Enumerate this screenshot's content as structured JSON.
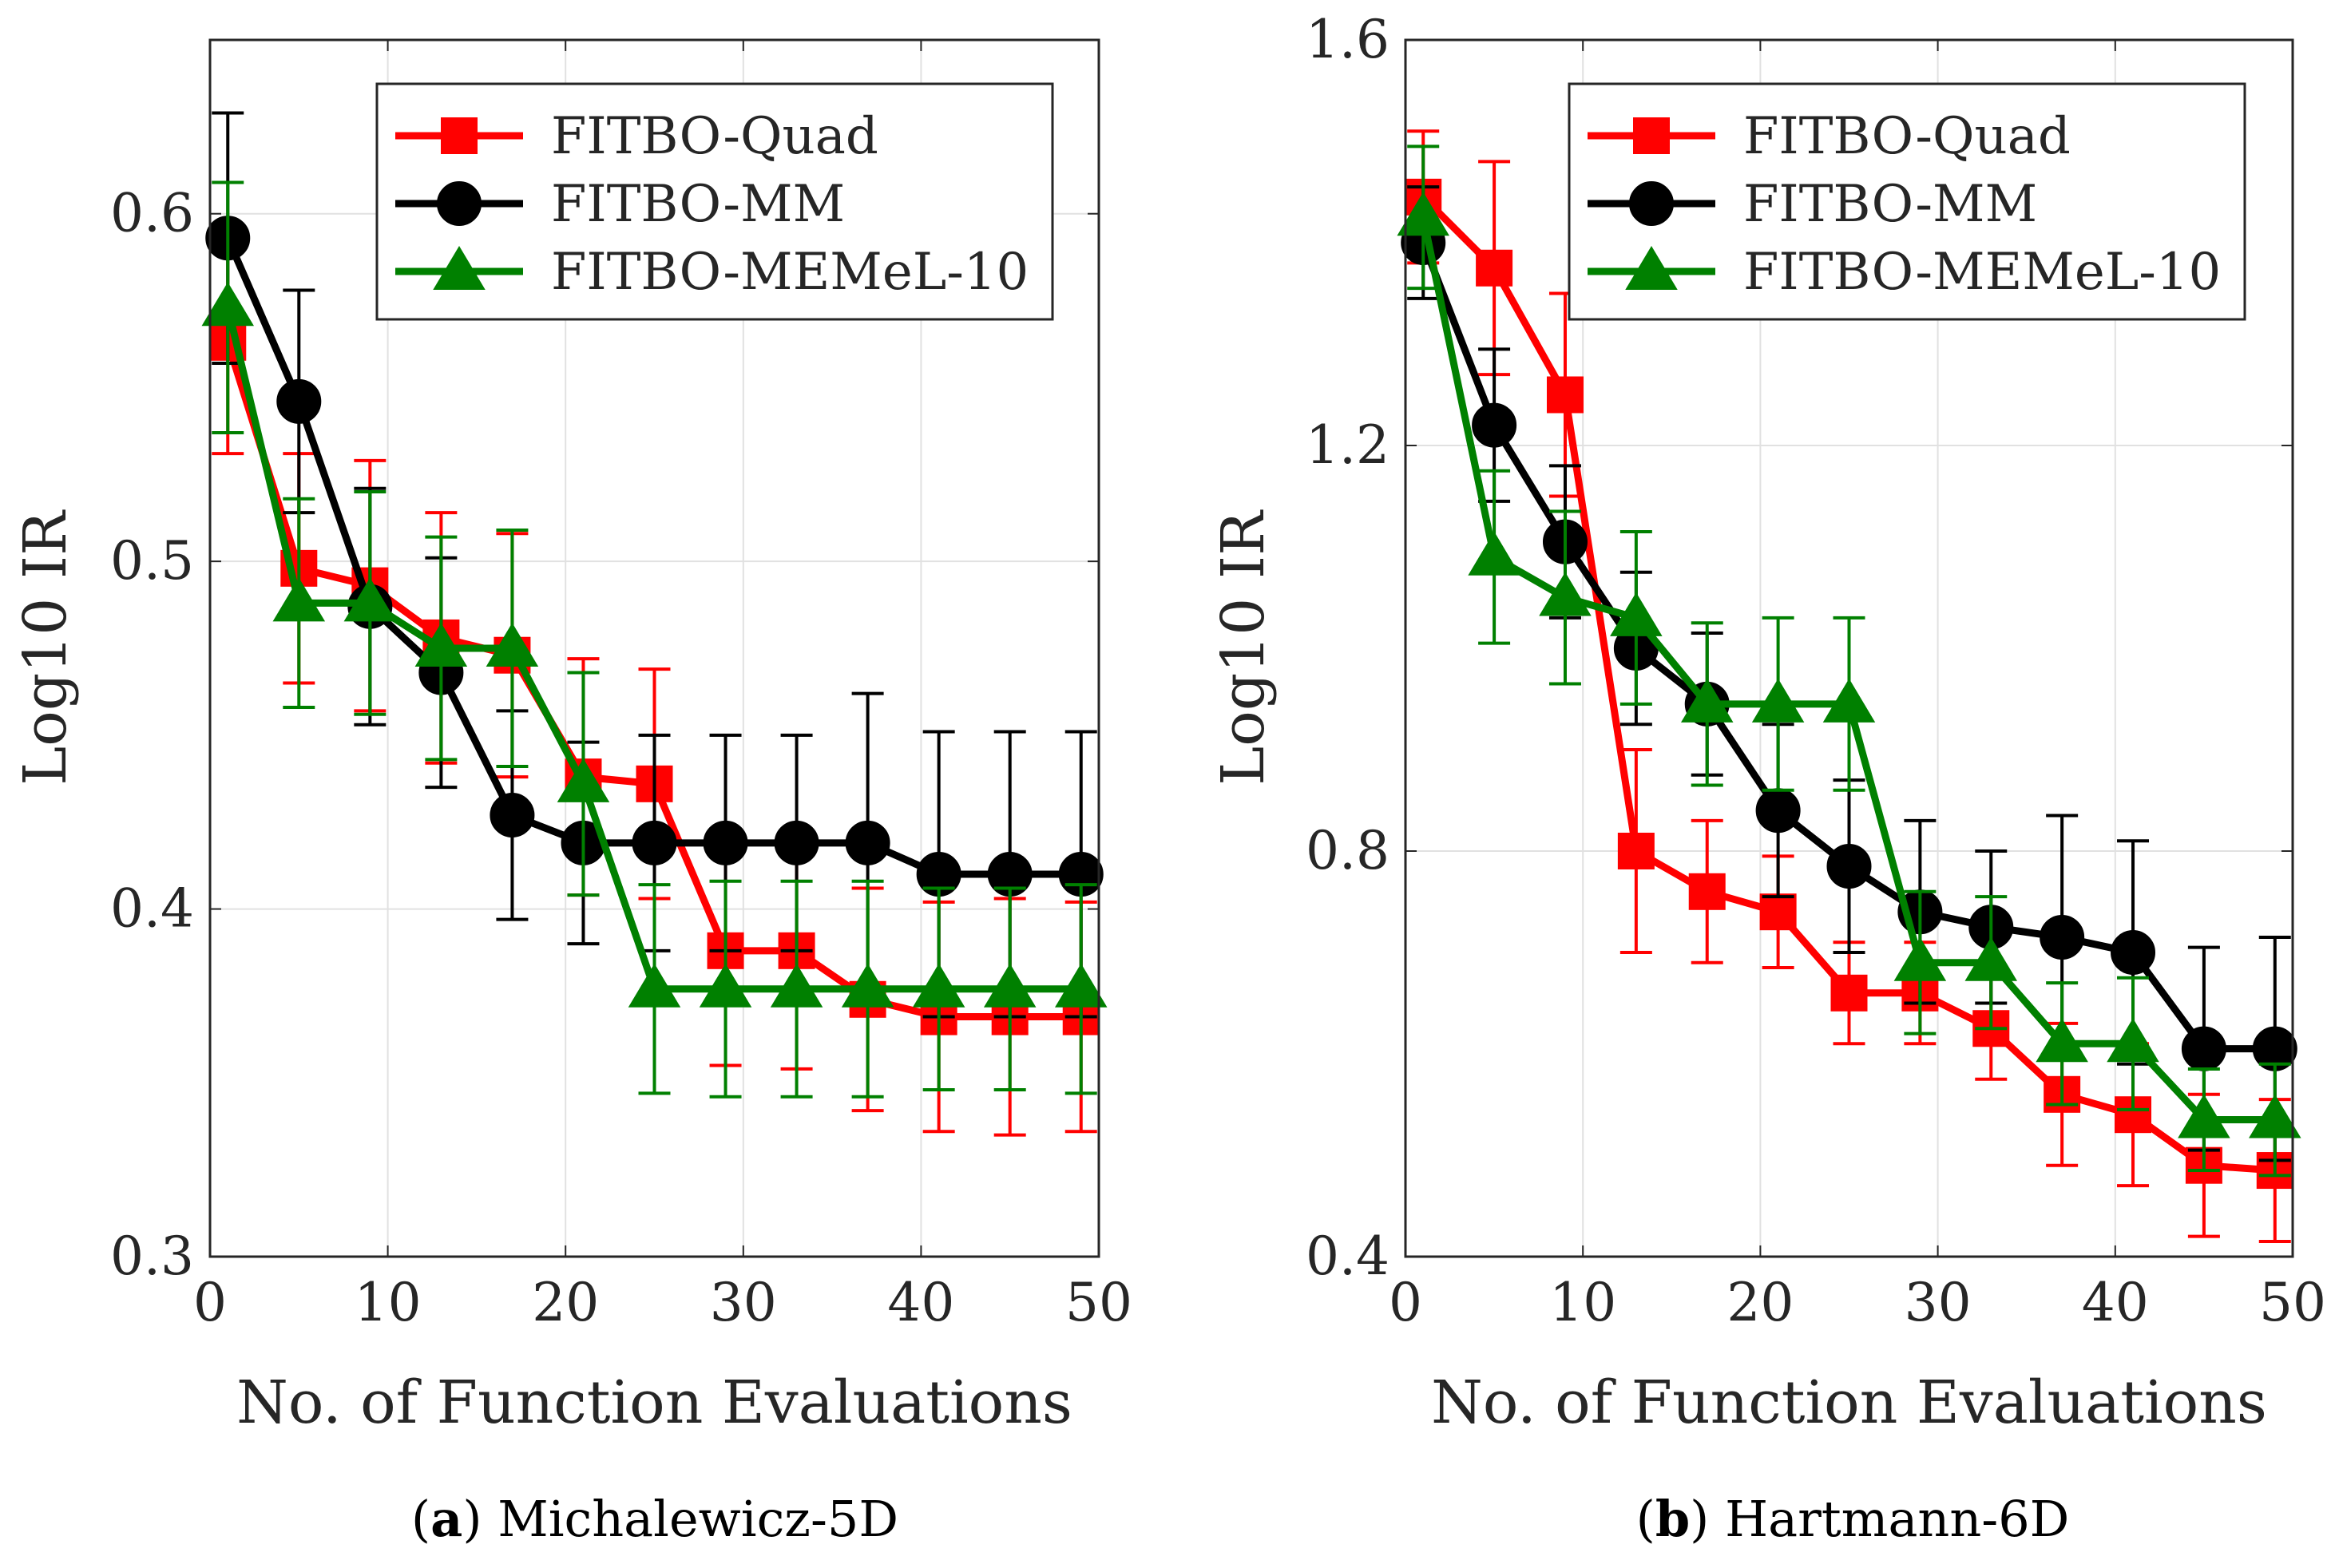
{
  "chart_data": [
    {
      "type": "line",
      "panel_letter": "a",
      "caption": "Michalewicz-5D",
      "xlabel": "No. of Function Evaluations",
      "ylabel": "Log10 IR",
      "xlim": [
        0,
        50
      ],
      "ylim": [
        0.3,
        0.65
      ],
      "xticks": [
        0,
        10,
        20,
        30,
        40,
        50
      ],
      "xtick_labels": [
        "0",
        "10",
        "20",
        "30",
        "40",
        "50"
      ],
      "yticks": [
        0.3,
        0.4,
        0.5,
        0.6
      ],
      "ytick_labels": [
        "0.3",
        "0.4",
        "0.5",
        "0.6"
      ],
      "grid": true,
      "legend_position": "top-right",
      "x": [
        1,
        5,
        9,
        13,
        17,
        21,
        25,
        29,
        33,
        37,
        41,
        45,
        49
      ],
      "series": [
        {
          "name": "FITBO-Quad",
          "color": "#ff0000",
          "marker": "square",
          "values": [
            0.563,
            0.498,
            0.493,
            0.478,
            0.473,
            0.438,
            0.436,
            0.388,
            0.388,
            0.374,
            0.369,
            0.369,
            0.369
          ],
          "errors": [
            0.032,
            0.033,
            0.036,
            0.036,
            0.035,
            0.034,
            0.033,
            0.033,
            0.034,
            0.032,
            0.033,
            0.034,
            0.033
          ]
        },
        {
          "name": "FITBO-MM",
          "color": "#000000",
          "marker": "circle",
          "values": [
            0.593,
            0.546,
            0.487,
            0.468,
            0.427,
            0.419,
            0.419,
            0.419,
            0.419,
            0.419,
            0.41,
            0.41,
            0.41
          ],
          "errors": [
            0.036,
            0.032,
            0.034,
            0.033,
            0.03,
            0.029,
            0.031,
            0.031,
            0.031,
            0.043,
            0.041,
            0.041,
            0.041
          ]
        },
        {
          "name": "FITBO-MEMeL-10",
          "color": "#008000",
          "marker": "triangle",
          "values": [
            0.573,
            0.488,
            0.488,
            0.475,
            0.475,
            0.436,
            0.377,
            0.377,
            0.377,
            0.377,
            0.377,
            0.377,
            0.377
          ],
          "errors": [
            0.036,
            0.03,
            0.032,
            0.032,
            0.034,
            0.032,
            0.03,
            0.031,
            0.031,
            0.031,
            0.029,
            0.029,
            0.03
          ]
        }
      ]
    },
    {
      "type": "line",
      "panel_letter": "b",
      "caption": "Hartmann-6D",
      "xlabel": "No. of Function Evaluations",
      "ylabel": "Log10 IR",
      "xlim": [
        0,
        50
      ],
      "ylim": [
        0.4,
        1.6
      ],
      "xticks": [
        0,
        10,
        20,
        30,
        40,
        50
      ],
      "xtick_labels": [
        "0",
        "10",
        "20",
        "30",
        "40",
        "50"
      ],
      "yticks": [
        0.4,
        0.8,
        1.2,
        1.6
      ],
      "ytick_labels": [
        "0.4",
        "0.8",
        "1.2",
        "1.6"
      ],
      "grid": true,
      "legend_position": "top-right",
      "x": [
        1,
        5,
        9,
        13,
        17,
        21,
        25,
        29,
        33,
        37,
        41,
        45,
        49
      ],
      "series": [
        {
          "name": "FITBO-Quad",
          "color": "#ff0000",
          "marker": "square",
          "values": [
            1.445,
            1.375,
            1.25,
            0.8,
            0.76,
            0.74,
            0.66,
            0.66,
            0.625,
            0.56,
            0.54,
            0.49,
            0.485
          ],
          "errors": [
            0.065,
            0.105,
            0.1,
            0.1,
            0.07,
            0.055,
            0.05,
            0.05,
            0.05,
            0.07,
            0.07,
            0.07,
            0.07
          ]
        },
        {
          "name": "FITBO-MM",
          "color": "#000000",
          "marker": "circle",
          "values": [
            1.4,
            1.22,
            1.105,
            1.0,
            0.945,
            0.84,
            0.785,
            0.74,
            0.725,
            0.715,
            0.7,
            0.605,
            0.605
          ],
          "errors": [
            0.055,
            0.075,
            0.075,
            0.075,
            0.07,
            0.085,
            0.085,
            0.09,
            0.075,
            0.12,
            0.11,
            0.1,
            0.11
          ]
        },
        {
          "name": "FITBO-MEMeL-10",
          "color": "#008000",
          "marker": "triangle",
          "values": [
            1.425,
            1.09,
            1.05,
            1.03,
            0.945,
            0.945,
            0.945,
            0.69,
            0.69,
            0.61,
            0.61,
            0.535,
            0.535
          ],
          "errors": [
            0.07,
            0.085,
            0.085,
            0.085,
            0.08,
            0.085,
            0.085,
            0.07,
            0.065,
            0.06,
            0.065,
            0.05,
            0.055
          ]
        }
      ]
    }
  ]
}
